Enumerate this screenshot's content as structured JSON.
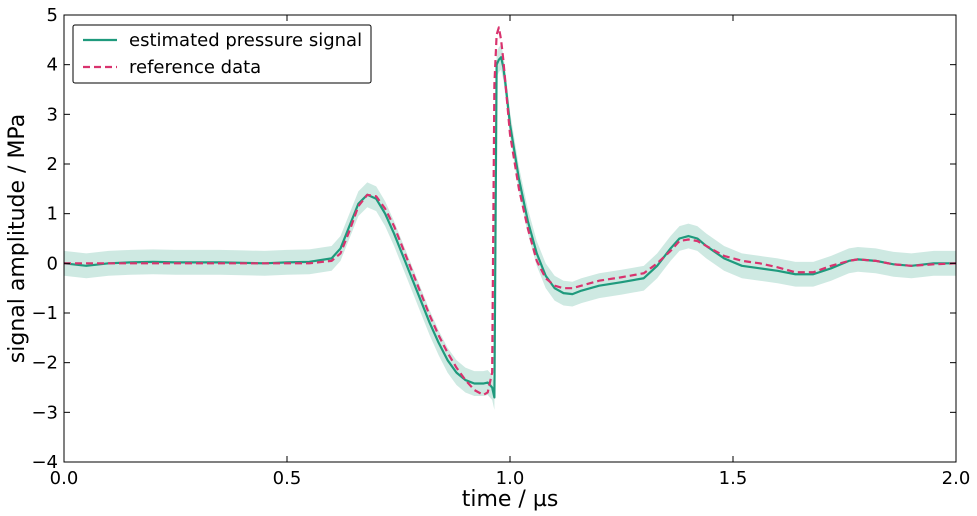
{
  "chart_data": {
    "type": "line",
    "title": "",
    "xlabel": "time / µs",
    "ylabel": "signal amplitude / MPa",
    "xlim": [
      0.0,
      2.0
    ],
    "ylim": [
      -4,
      5
    ],
    "xticks": [
      "0.0",
      "0.5",
      "1.0",
      "1.5",
      "2.0"
    ],
    "yticks": [
      "−4",
      "−3",
      "−2",
      "−1",
      "0",
      "1",
      "2",
      "3",
      "4",
      "5"
    ],
    "grid": false,
    "legend_position": "top-left",
    "colors": {
      "estimated": "#1f9a7d",
      "reference": "#d9336e",
      "band": "#1f9a7d"
    },
    "band_halfwidth": 0.25,
    "series": [
      {
        "name": "estimated pressure signal",
        "style": "solid",
        "x": [
          0.0,
          0.05,
          0.1,
          0.15,
          0.2,
          0.25,
          0.3,
          0.35,
          0.4,
          0.45,
          0.5,
          0.55,
          0.6,
          0.62,
          0.64,
          0.66,
          0.68,
          0.7,
          0.72,
          0.74,
          0.76,
          0.78,
          0.8,
          0.82,
          0.84,
          0.86,
          0.88,
          0.9,
          0.92,
          0.94,
          0.95,
          0.96,
          0.965,
          0.97,
          0.975,
          0.98,
          0.985,
          0.99,
          1.0,
          1.02,
          1.04,
          1.06,
          1.08,
          1.1,
          1.12,
          1.14,
          1.16,
          1.2,
          1.25,
          1.3,
          1.33,
          1.36,
          1.38,
          1.4,
          1.42,
          1.44,
          1.48,
          1.52,
          1.56,
          1.6,
          1.64,
          1.68,
          1.72,
          1.76,
          1.78,
          1.82,
          1.86,
          1.9,
          1.95,
          2.0
        ],
        "y": [
          0.0,
          -0.05,
          0.0,
          0.02,
          0.03,
          0.02,
          0.02,
          0.02,
          0.01,
          0.0,
          0.02,
          0.03,
          0.1,
          0.3,
          0.75,
          1.2,
          1.38,
          1.3,
          1.0,
          0.6,
          0.15,
          -0.3,
          -0.75,
          -1.2,
          -1.6,
          -1.95,
          -2.2,
          -2.35,
          -2.42,
          -2.42,
          -2.4,
          -2.5,
          -2.7,
          4.0,
          4.1,
          4.15,
          3.95,
          3.6,
          2.8,
          1.7,
          0.85,
          0.2,
          -0.25,
          -0.5,
          -0.6,
          -0.62,
          -0.55,
          -0.45,
          -0.38,
          -0.3,
          -0.05,
          0.3,
          0.5,
          0.55,
          0.5,
          0.35,
          0.1,
          -0.05,
          -0.1,
          -0.15,
          -0.22,
          -0.22,
          -0.1,
          0.05,
          0.08,
          0.05,
          -0.02,
          -0.05,
          0.0,
          0.0
        ]
      },
      {
        "name": "reference data",
        "style": "dashed",
        "x": [
          0.0,
          0.05,
          0.1,
          0.15,
          0.2,
          0.25,
          0.3,
          0.35,
          0.4,
          0.45,
          0.5,
          0.55,
          0.6,
          0.62,
          0.64,
          0.66,
          0.68,
          0.7,
          0.72,
          0.74,
          0.76,
          0.78,
          0.8,
          0.82,
          0.84,
          0.86,
          0.88,
          0.9,
          0.92,
          0.94,
          0.95,
          0.96,
          0.965,
          0.97,
          0.975,
          0.98,
          0.985,
          0.99,
          1.0,
          1.02,
          1.04,
          1.06,
          1.08,
          1.1,
          1.12,
          1.14,
          1.16,
          1.2,
          1.25,
          1.3,
          1.33,
          1.36,
          1.38,
          1.4,
          1.42,
          1.44,
          1.48,
          1.52,
          1.56,
          1.6,
          1.64,
          1.68,
          1.72,
          1.76,
          1.78,
          1.82,
          1.86,
          1.9,
          1.95,
          2.0
        ],
        "y": [
          0.0,
          0.0,
          0.0,
          0.0,
          0.0,
          0.0,
          0.0,
          0.0,
          0.0,
          0.0,
          0.0,
          0.0,
          0.05,
          0.2,
          0.65,
          1.15,
          1.38,
          1.35,
          1.1,
          0.75,
          0.3,
          -0.15,
          -0.6,
          -1.05,
          -1.45,
          -1.8,
          -2.1,
          -2.35,
          -2.55,
          -2.65,
          -2.6,
          -2.2,
          3.6,
          4.6,
          4.75,
          4.5,
          4.1,
          3.6,
          2.6,
          1.5,
          0.7,
          0.05,
          -0.3,
          -0.45,
          -0.5,
          -0.5,
          -0.45,
          -0.35,
          -0.28,
          -0.2,
          0.0,
          0.25,
          0.45,
          0.48,
          0.45,
          0.35,
          0.15,
          0.05,
          0.0,
          -0.08,
          -0.18,
          -0.18,
          -0.05,
          0.05,
          0.08,
          0.05,
          -0.02,
          -0.05,
          -0.02,
          0.0
        ]
      }
    ]
  }
}
